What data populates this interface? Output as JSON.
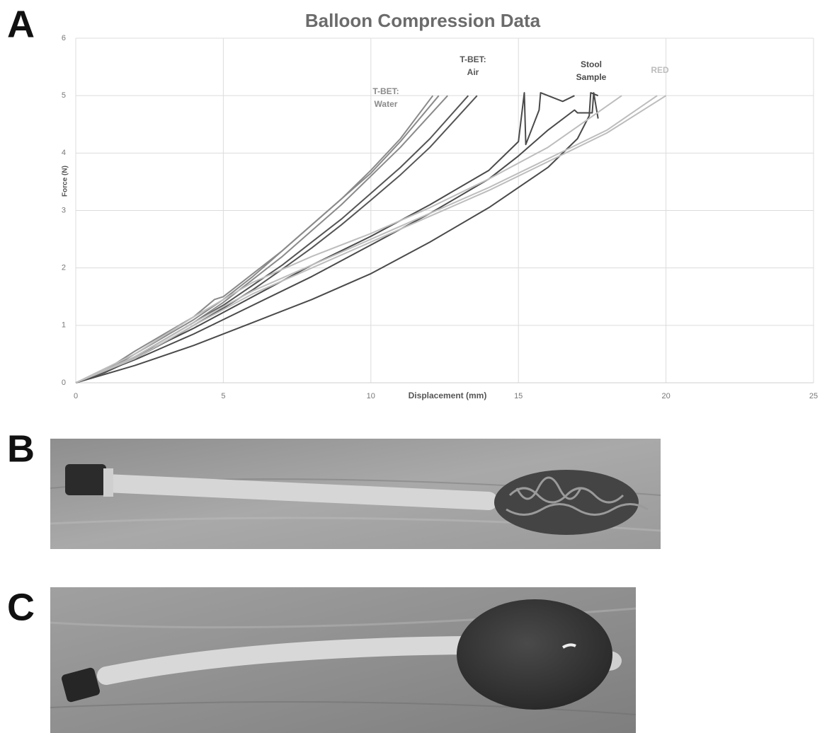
{
  "panel_labels": [
    "A",
    "B",
    "C"
  ],
  "chart_data": {
    "type": "line",
    "title": "Balloon Compression Data",
    "x_label": "Displacement (mm)",
    "y_label": "Force (N)",
    "xlim": [
      0,
      25
    ],
    "xticks": [
      0,
      5,
      10,
      15,
      20,
      25
    ],
    "ylim": [
      0,
      6
    ],
    "yticks": [
      0,
      1,
      2,
      3,
      4,
      5,
      6
    ],
    "grid": true,
    "series": [
      {
        "color": "#8a8a8a",
        "x": [
          0,
          1,
          2,
          3,
          4,
          5,
          6,
          7,
          8,
          9,
          10,
          11,
          12.1
        ],
        "values": [
          0,
          0.2,
          0.5,
          0.8,
          1.1,
          1.45,
          1.85,
          2.3,
          2.75,
          3.2,
          3.7,
          4.25,
          5
        ]
      },
      {
        "color": "#8a8a8a",
        "x": [
          0,
          1,
          2,
          3,
          4,
          4.7,
          5,
          6,
          7,
          8,
          9,
          10,
          11,
          12.3
        ],
        "values": [
          0,
          0.22,
          0.55,
          0.85,
          1.15,
          1.45,
          1.5,
          1.9,
          2.3,
          2.75,
          3.2,
          3.65,
          4.2,
          5
        ]
      },
      {
        "color": "#8a8a8a",
        "x": [
          0,
          1,
          2,
          3,
          4,
          5,
          6,
          7,
          8,
          9,
          10,
          11,
          12.6
        ],
        "values": [
          0,
          0.2,
          0.45,
          0.75,
          1.05,
          1.4,
          1.8,
          2.2,
          2.65,
          3.1,
          3.6,
          4.1,
          5
        ]
      },
      {
        "color": "#555555",
        "x": [
          0,
          1,
          2,
          3,
          4,
          5,
          6,
          7,
          8,
          9,
          10,
          11,
          12,
          13.3
        ],
        "values": [
          0,
          0.2,
          0.45,
          0.75,
          1.05,
          1.35,
          1.7,
          2.05,
          2.45,
          2.85,
          3.3,
          3.75,
          4.25,
          5
        ]
      },
      {
        "color": "#555555",
        "x": [
          0,
          1,
          2,
          3,
          4,
          5,
          6,
          7,
          8,
          9,
          10,
          11,
          12,
          13.6
        ],
        "values": [
          0,
          0.18,
          0.42,
          0.7,
          1,
          1.3,
          1.62,
          1.98,
          2.35,
          2.75,
          3.18,
          3.62,
          4.1,
          5
        ]
      },
      {
        "color": "#4a4a4a",
        "x": [
          0,
          2,
          4,
          6,
          8,
          10,
          12,
          14,
          15,
          15.2,
          15.25,
          15.7,
          15.75,
          16.5,
          16.9
        ],
        "values": [
          0,
          0.45,
          0.95,
          1.5,
          2.05,
          2.55,
          3.1,
          3.7,
          4.2,
          5.05,
          4.15,
          4.75,
          5.05,
          4.9,
          5
        ]
      },
      {
        "color": "#4a4a4a",
        "x": [
          0,
          2,
          4,
          6,
          8,
          10,
          12,
          14,
          15,
          16,
          16.9,
          17,
          17.5,
          17.55,
          17.7
        ],
        "values": [
          0,
          0.4,
          0.85,
          1.35,
          1.85,
          2.4,
          2.95,
          3.55,
          3.95,
          4.4,
          4.75,
          4.7,
          4.7,
          5.05,
          4.6
        ]
      },
      {
        "color": "#4a4a4a",
        "x": [
          0,
          2,
          4,
          6,
          8,
          10,
          12,
          14,
          16,
          17,
          17.4,
          17.45,
          17.7
        ],
        "values": [
          0,
          0.3,
          0.65,
          1.05,
          1.45,
          1.9,
          2.45,
          3.05,
          3.75,
          4.25,
          4.65,
          5.05,
          5
        ]
      },
      {
        "color": "#bdbdbd",
        "x": [
          0,
          2,
          4,
          6,
          8,
          10,
          12,
          14,
          16,
          18.5
        ],
        "values": [
          0,
          0.5,
          1.15,
          1.75,
          2.2,
          2.6,
          3.05,
          3.55,
          4.1,
          5
        ]
      },
      {
        "color": "#bdbdbd",
        "x": [
          0,
          2,
          4,
          6,
          8,
          10,
          12,
          14,
          16,
          18,
          19.7
        ],
        "values": [
          0,
          0.45,
          1.05,
          1.6,
          2.05,
          2.5,
          2.95,
          3.4,
          3.9,
          4.4,
          5
        ]
      },
      {
        "color": "#bdbdbd",
        "x": [
          0,
          2,
          4,
          6,
          8,
          10,
          12,
          14,
          16,
          18,
          20
        ],
        "values": [
          0,
          0.42,
          1,
          1.55,
          2,
          2.45,
          2.9,
          3.35,
          3.85,
          4.35,
          5
        ]
      }
    ],
    "annotations": [
      {
        "text": [
          "T-BET:",
          "Water"
        ],
        "color": "#8a8a8a"
      },
      {
        "text": [
          "T-BET:",
          "Air"
        ],
        "color": "#555555"
      },
      {
        "text": [
          "Stool",
          "Sample"
        ],
        "color": "#4a4a4a"
      },
      {
        "text": [
          "RED"
        ],
        "color": "#bdbdbd"
      }
    ]
  }
}
